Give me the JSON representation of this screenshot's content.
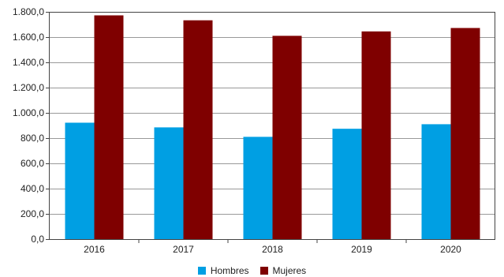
{
  "chart_data": {
    "type": "bar",
    "categories": [
      "2016",
      "2017",
      "2018",
      "2019",
      "2020"
    ],
    "series": [
      {
        "name": "Hombres",
        "values": [
          922,
          885,
          810,
          874,
          910
        ],
        "color": "#009fe3"
      },
      {
        "name": "Mujeres",
        "values": [
          1772,
          1733,
          1610,
          1645,
          1672
        ],
        "color": "#7f0000"
      }
    ],
    "yticks": [
      "0,0",
      "200,0",
      "400,0",
      "600,0",
      "800,0",
      "1.000,0",
      "1.200,0",
      "1.400,0",
      "1.600,0",
      "1.800,0"
    ],
    "ylim": [
      0,
      1800
    ],
    "grid": true,
    "legend_position": "bottom-center"
  }
}
